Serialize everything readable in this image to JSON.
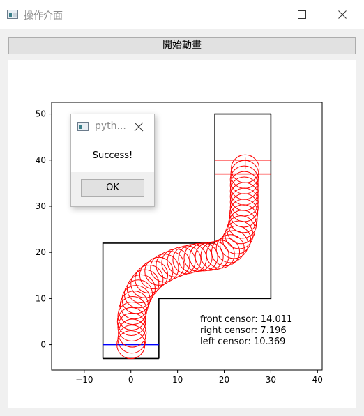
{
  "window": {
    "title": "操作介面",
    "icon": "app-window-icon",
    "controls": [
      "minimize-icon",
      "maximize-icon",
      "close-icon"
    ]
  },
  "toolbar": {
    "start_label": "開始動畫"
  },
  "chart_data": {
    "type": "line",
    "xlim": [
      -17,
      41
    ],
    "ylim": [
      -5.5,
      52.5
    ],
    "xticks": [
      -10,
      0,
      10,
      20,
      30,
      40
    ],
    "yticks": [
      0,
      10,
      20,
      30,
      40,
      50
    ],
    "grid": false,
    "track": {
      "color": "#000000",
      "left_wall": [
        [
          -6,
          -3
        ],
        [
          -6,
          22
        ],
        [
          18,
          22
        ],
        [
          18,
          50
        ],
        [
          30,
          50
        ]
      ],
      "right_wall": [
        [
          6,
          -3
        ],
        [
          6,
          10
        ],
        [
          30,
          10
        ],
        [
          30,
          50
        ]
      ],
      "bottom_wall": [
        [
          -6,
          -3
        ],
        [
          6,
          -3
        ]
      ]
    },
    "start_line": {
      "color": "#0000ff",
      "points": [
        [
          -6,
          0
        ],
        [
          6,
          0
        ]
      ]
    },
    "finish_lines": {
      "color": "#ff0000",
      "lines": [
        [
          [
            18,
            40
          ],
          [
            30,
            40
          ]
        ],
        [
          [
            18,
            37
          ],
          [
            30,
            37
          ]
        ]
      ]
    },
    "car_radius": 3,
    "car_color": "#ff0000",
    "car_path": [
      [
        0,
        0
      ],
      [
        0.2,
        1.2
      ],
      [
        0.3,
        2.5
      ],
      [
        0.2,
        3.8
      ],
      [
        0.1,
        5
      ],
      [
        0.2,
        6.2
      ],
      [
        0.4,
        7.4
      ],
      [
        0.7,
        8.6
      ],
      [
        1.1,
        9.8
      ],
      [
        1.6,
        11
      ],
      [
        2.2,
        12.1
      ],
      [
        3,
        13.2
      ],
      [
        3.9,
        14.2
      ],
      [
        4.9,
        15.1
      ],
      [
        6,
        15.9
      ],
      [
        7.2,
        16.6
      ],
      [
        8.4,
        17.2
      ],
      [
        9.6,
        17.7
      ],
      [
        10.8,
        18.1
      ],
      [
        12,
        18.4
      ],
      [
        13.2,
        18.7
      ],
      [
        14.4,
        18.9
      ],
      [
        15.6,
        19
      ],
      [
        16.8,
        19.1
      ],
      [
        18,
        19.3
      ],
      [
        19.2,
        19.6
      ],
      [
        20.3,
        20.1
      ],
      [
        21.3,
        20.8
      ],
      [
        22.1,
        21.7
      ],
      [
        22.7,
        22.7
      ],
      [
        23.2,
        23.8
      ],
      [
        23.6,
        24.9
      ],
      [
        23.9,
        26.1
      ],
      [
        24.1,
        27.3
      ],
      [
        24.2,
        28.5
      ],
      [
        24.3,
        29.7
      ],
      [
        24.3,
        30.9
      ],
      [
        24.3,
        32.1
      ],
      [
        24.3,
        33.3
      ],
      [
        24.3,
        34.5
      ],
      [
        24.3,
        35.7
      ],
      [
        24.4,
        36.9
      ],
      [
        24.5,
        38.1
      ]
    ],
    "heading_arrow": [
      [
        24.5,
        38.1
      ],
      [
        24.5,
        40.5
      ]
    ],
    "annotations": [
      {
        "label": "front censor:",
        "value": "14.011"
      },
      {
        "label": "right censor:",
        "value": "7.196"
      },
      {
        "label": "left censor:",
        "value": "10.369"
      }
    ]
  },
  "dialog": {
    "title": "pyth...",
    "message": "Success!",
    "ok_label": "OK"
  }
}
